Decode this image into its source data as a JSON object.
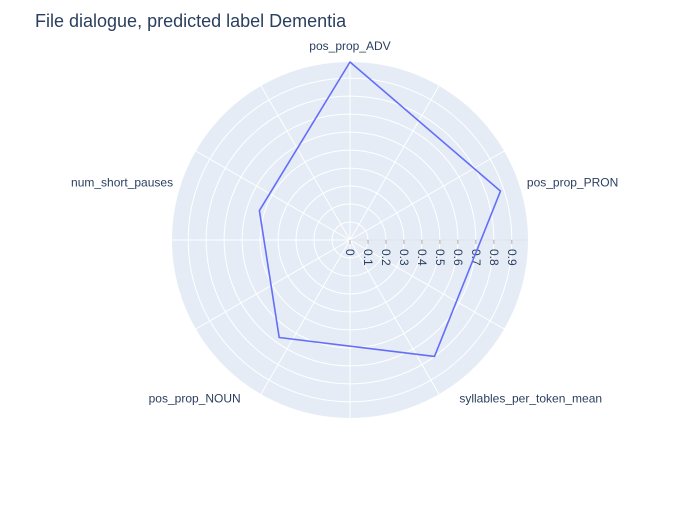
{
  "chart_data": {
    "type": "radar",
    "title": "File dialogue, predicted label Dementia",
    "categories": [
      "pos_prop_ADV",
      "pos_prop_PRON",
      "syllables_per_token_mean",
      "pos_prop_NOUN",
      "num_short_pauses"
    ],
    "series": [
      {
        "values": [
          0.99,
          0.88,
          0.8,
          0.67,
          0.53
        ]
      }
    ],
    "radial_ticks": [
      "0",
      "0.1",
      "0.2",
      "0.3",
      "0.4",
      "0.5",
      "0.6",
      "0.7",
      "0.8",
      "0.9"
    ],
    "radial_range": [
      0,
      0.99
    ],
    "grid": true,
    "legend": "none",
    "colors": {
      "series_line": "#636efa",
      "polar_background": "#e5ecf6",
      "grid": "#ffffff",
      "text": "#2a3f5f"
    }
  }
}
